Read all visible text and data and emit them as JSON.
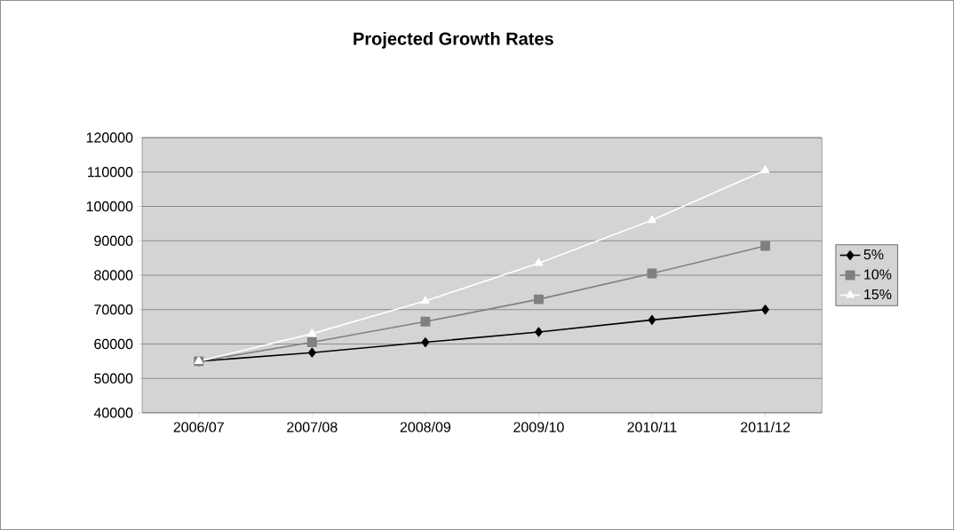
{
  "chart_data": {
    "type": "line",
    "title": "Projected Growth Rates",
    "categories": [
      "2006/07",
      "2007/08",
      "2008/09",
      "2009/10",
      "2010/11",
      "2011/12"
    ],
    "series": [
      {
        "name": "5%",
        "color": "#000000",
        "marker": "diamond",
        "values": [
          55000,
          57500,
          60500,
          63500,
          67000,
          70000
        ]
      },
      {
        "name": "10%",
        "color": "#808080",
        "marker": "square",
        "values": [
          55000,
          60500,
          66500,
          73000,
          80500,
          88500
        ]
      },
      {
        "name": "15%",
        "color": "#ffffff",
        "marker": "triangle",
        "values": [
          55000,
          63000,
          72500,
          83500,
          96000,
          110500
        ]
      }
    ],
    "ylim": [
      40000,
      120000
    ],
    "yticks": [
      40000,
      50000,
      60000,
      70000,
      80000,
      90000,
      100000,
      110000,
      120000
    ],
    "grid": "y",
    "legend": "right",
    "line_style": "solid"
  }
}
